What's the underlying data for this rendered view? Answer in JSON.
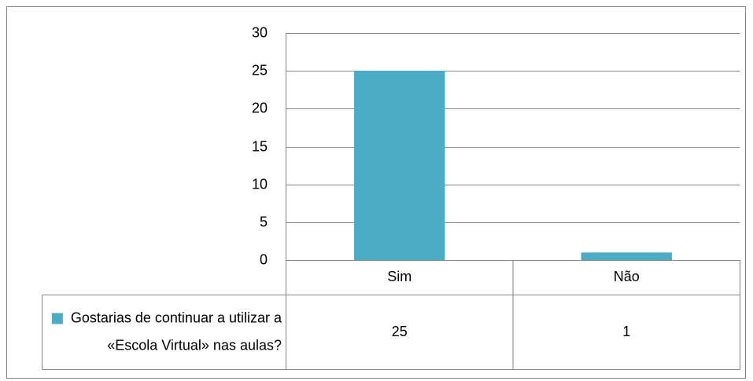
{
  "chart_data": {
    "type": "bar",
    "categories": [
      "Sim",
      "Não"
    ],
    "series": [
      {
        "name": "Gostarias de continuar a utilizar a «Escola Virtual» nas aulas?",
        "color": "#4bacc6",
        "values": [
          25,
          1
        ]
      }
    ],
    "ylim": [
      0,
      30
    ],
    "yticks": [
      0,
      5,
      10,
      15,
      20,
      25,
      30
    ],
    "grid": true,
    "data_table": true
  }
}
